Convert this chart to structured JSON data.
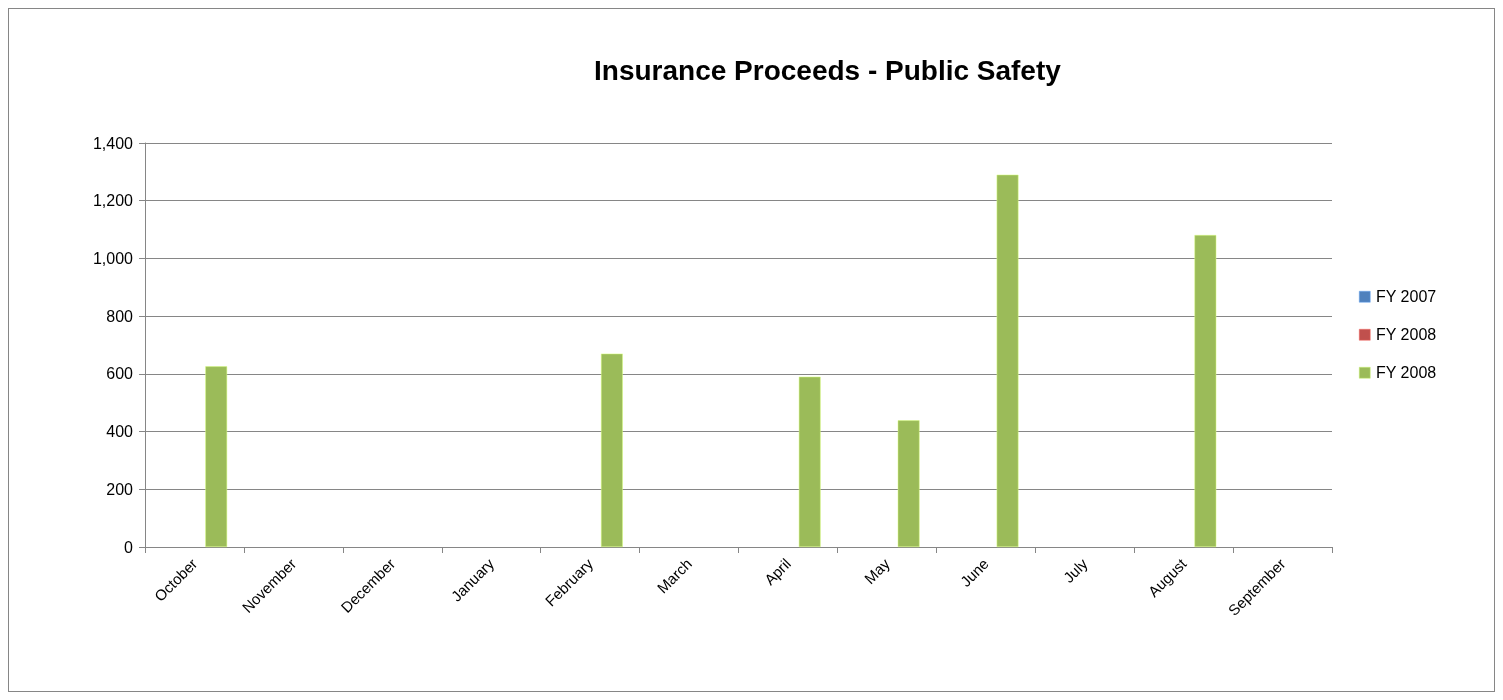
{
  "chart_data": {
    "type": "bar",
    "title": "Insurance Proceeds - Public Safety",
    "categories": [
      "October",
      "November",
      "December",
      "January",
      "February",
      "March",
      "April",
      "May",
      "June",
      "July",
      "August",
      "September"
    ],
    "series": [
      {
        "name": "FY 2007",
        "color": "#4f81bd",
        "values": [
          null,
          null,
          null,
          null,
          null,
          null,
          null,
          null,
          null,
          null,
          null,
          null
        ]
      },
      {
        "name": "FY 2008",
        "color": "#c0504d",
        "values": [
          null,
          null,
          null,
          null,
          null,
          null,
          null,
          null,
          null,
          null,
          null,
          null
        ]
      },
      {
        "name": "FY 2008",
        "color": "#9bbb59",
        "values": [
          626,
          null,
          null,
          null,
          670,
          null,
          590,
          439,
          1290,
          null,
          1081,
          null
        ]
      }
    ],
    "ylim": [
      0,
      1400
    ],
    "yticks": [
      0,
      200,
      400,
      600,
      800,
      {
        "value": 1000,
        "label": "1,000"
      },
      {
        "value": 1200,
        "label": "1,200"
      },
      {
        "value": 1400,
        "label": "1,400"
      }
    ],
    "grid": "y",
    "legend": "right"
  }
}
